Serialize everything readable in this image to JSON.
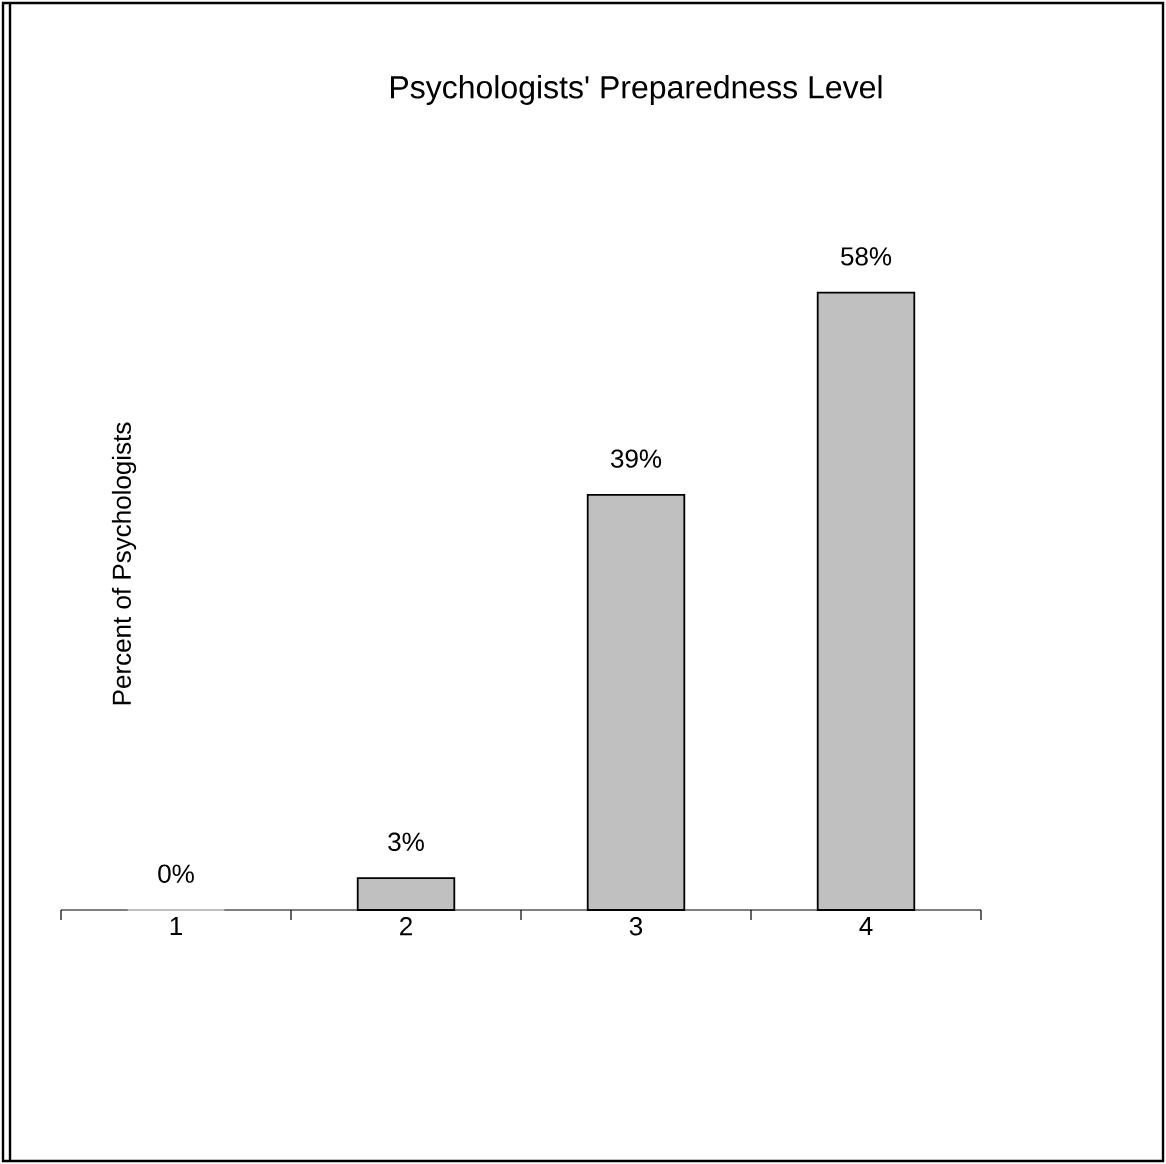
{
  "chart_data": {
    "type": "bar",
    "title": "Psychologists' Preparedness Level",
    "ylabel": "Percent of Psychologists",
    "categories": [
      "1",
      "2",
      "3",
      "4"
    ],
    "values": [
      0,
      3,
      39,
      58
    ],
    "value_labels": [
      "0%",
      "3%",
      "39%",
      "58%"
    ],
    "color": "#c0c0c0"
  }
}
